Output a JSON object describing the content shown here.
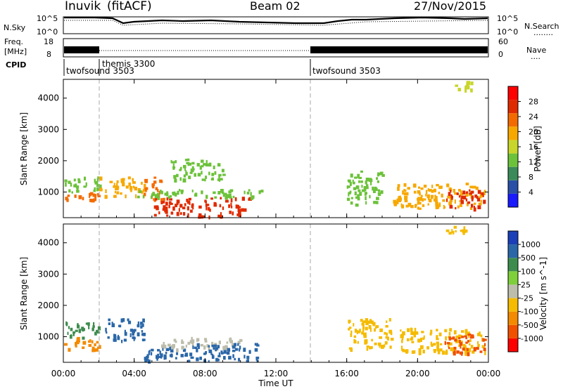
{
  "header": {
    "station": "Inuvik",
    "mode": "(fitACF)",
    "beam": "Beam 02",
    "date": "27/Nov/2015"
  },
  "noise_panel": {
    "left_label": "N.Sky",
    "left_ticks": [
      "10^5",
      "10^0"
    ],
    "right_ticks": [
      "10^5",
      "10^0"
    ],
    "right_label": "N.Search",
    "right_line": "........"
  },
  "freq_panel": {
    "left_label_top": "Freq.",
    "left_label_unit": "[MHz]",
    "left_ticks": [
      "18",
      "8"
    ],
    "right_ticks": [
      "60",
      "0"
    ],
    "right_label": "Nave",
    "right_line": "...."
  },
  "cpid_panel": {
    "label": "CPID",
    "entries": [
      {
        "name": "twofsound 3503",
        "start": "00:00"
      },
      {
        "name": "themis 3300",
        "start": "02:00"
      },
      {
        "name": "twofsound 3503",
        "start": "14:00"
      }
    ]
  },
  "x_axis": {
    "label": "Time UT",
    "ticks": [
      "00:00",
      "04:00",
      "08:00",
      "12:00",
      "16:00",
      "20:00",
      "00:00"
    ]
  },
  "colors": {
    "power_scale": [
      "#1a1aff",
      "#2a4fa6",
      "#3a8a5a",
      "#6cc23a",
      "#c8d52a",
      "#f7a800",
      "#f36b00",
      "#e02a00",
      "#ff0000"
    ],
    "velocity_scale": [
      "#ff0000",
      "#f05000",
      "#f38a00",
      "#f5bb00",
      "#bdbdac",
      "#7ecf3a",
      "#3d8c4e",
      "#2a67a8",
      "#1a3fb8"
    ]
  },
  "chart_data": [
    {
      "type": "heatmap",
      "title": "Power",
      "ylabel": "Slant Range [km]",
      "xlabel": "Time UT",
      "x_range_hours": [
        0,
        24
      ],
      "ylim": [
        180,
        4600
      ],
      "y_ticks": [
        "4000",
        "3000",
        "2000",
        "1000"
      ],
      "colorbar": {
        "label": "Power [dB]",
        "range": [
          0,
          32
        ],
        "ticks": [
          "28",
          "24",
          "20",
          "16",
          "12",
          "8",
          "4"
        ]
      },
      "dashed_time_markers_hours": [
        2,
        14
      ],
      "regions": [
        {
          "t": [
            0.0,
            2.0
          ],
          "r": [
            700,
            1000
          ],
          "value": 24
        },
        {
          "t": [
            0.0,
            2.0
          ],
          "r": [
            1000,
            1500
          ],
          "value": 12
        },
        {
          "t": [
            2.0,
            4.6
          ],
          "r": [
            900,
            1500
          ],
          "value": 20
        },
        {
          "t": [
            4.5,
            5.6
          ],
          "r": [
            700,
            1500
          ],
          "value": 24
        },
        {
          "t": [
            5.0,
            10.5
          ],
          "r": [
            250,
            850
          ],
          "value": 28
        },
        {
          "t": [
            4.0,
            11.5
          ],
          "r": [
            850,
            1100
          ],
          "value": 12
        },
        {
          "t": [
            6.0,
            9.0
          ],
          "r": [
            1400,
            2100
          ],
          "value": 12
        },
        {
          "t": [
            16.0,
            18.0
          ],
          "r": [
            600,
            1700
          ],
          "value": 12
        },
        {
          "t": [
            18.5,
            23.8
          ],
          "r": [
            500,
            1300
          ],
          "value": 20
        },
        {
          "t": [
            21.5,
            23.8
          ],
          "r": [
            500,
            1100
          ],
          "value": 28
        },
        {
          "t": [
            21.5,
            23.0
          ],
          "r": [
            4300,
            4550
          ],
          "value": 16
        }
      ]
    },
    {
      "type": "heatmap",
      "title": "Velocity",
      "ylabel": "Slant Range [km]",
      "xlabel": "Time UT",
      "x_range_hours": [
        0,
        24
      ],
      "ylim": [
        180,
        4600
      ],
      "y_ticks": [
        "4000",
        "3000",
        "2000",
        "1000"
      ],
      "colorbar": {
        "label": "Velocity [m s^-1]",
        "ticks": [
          "1000",
          "500",
          "100",
          "25",
          "-25",
          "-100",
          "-500",
          "-1000"
        ]
      },
      "dashed_time_markers_hours": [
        2,
        14
      ],
      "regions": [
        {
          "t": [
            0.0,
            2.0
          ],
          "r": [
            600,
            1000
          ],
          "value": -500
        },
        {
          "t": [
            0.0,
            2.0
          ],
          "r": [
            1000,
            1500
          ],
          "value": 100
        },
        {
          "t": [
            2.3,
            4.6
          ],
          "r": [
            900,
            1600
          ],
          "value": 500
        },
        {
          "t": [
            4.5,
            7.0
          ],
          "r": [
            200,
            700
          ],
          "value": 500
        },
        {
          "t": [
            5.5,
            10.0
          ],
          "r": [
            600,
            1000
          ],
          "value": 0
        },
        {
          "t": [
            7.0,
            11.0
          ],
          "r": [
            250,
            800
          ],
          "value": 500
        },
        {
          "t": [
            16.0,
            18.5
          ],
          "r": [
            600,
            1600
          ],
          "value": -100
        },
        {
          "t": [
            19.0,
            23.8
          ],
          "r": [
            500,
            1300
          ],
          "value": -100
        },
        {
          "t": [
            21.5,
            23.8
          ],
          "r": [
            500,
            1100
          ],
          "value": -1000
        },
        {
          "t": [
            21.5,
            23.0
          ],
          "r": [
            4300,
            4550
          ],
          "value": -100
        }
      ]
    }
  ]
}
